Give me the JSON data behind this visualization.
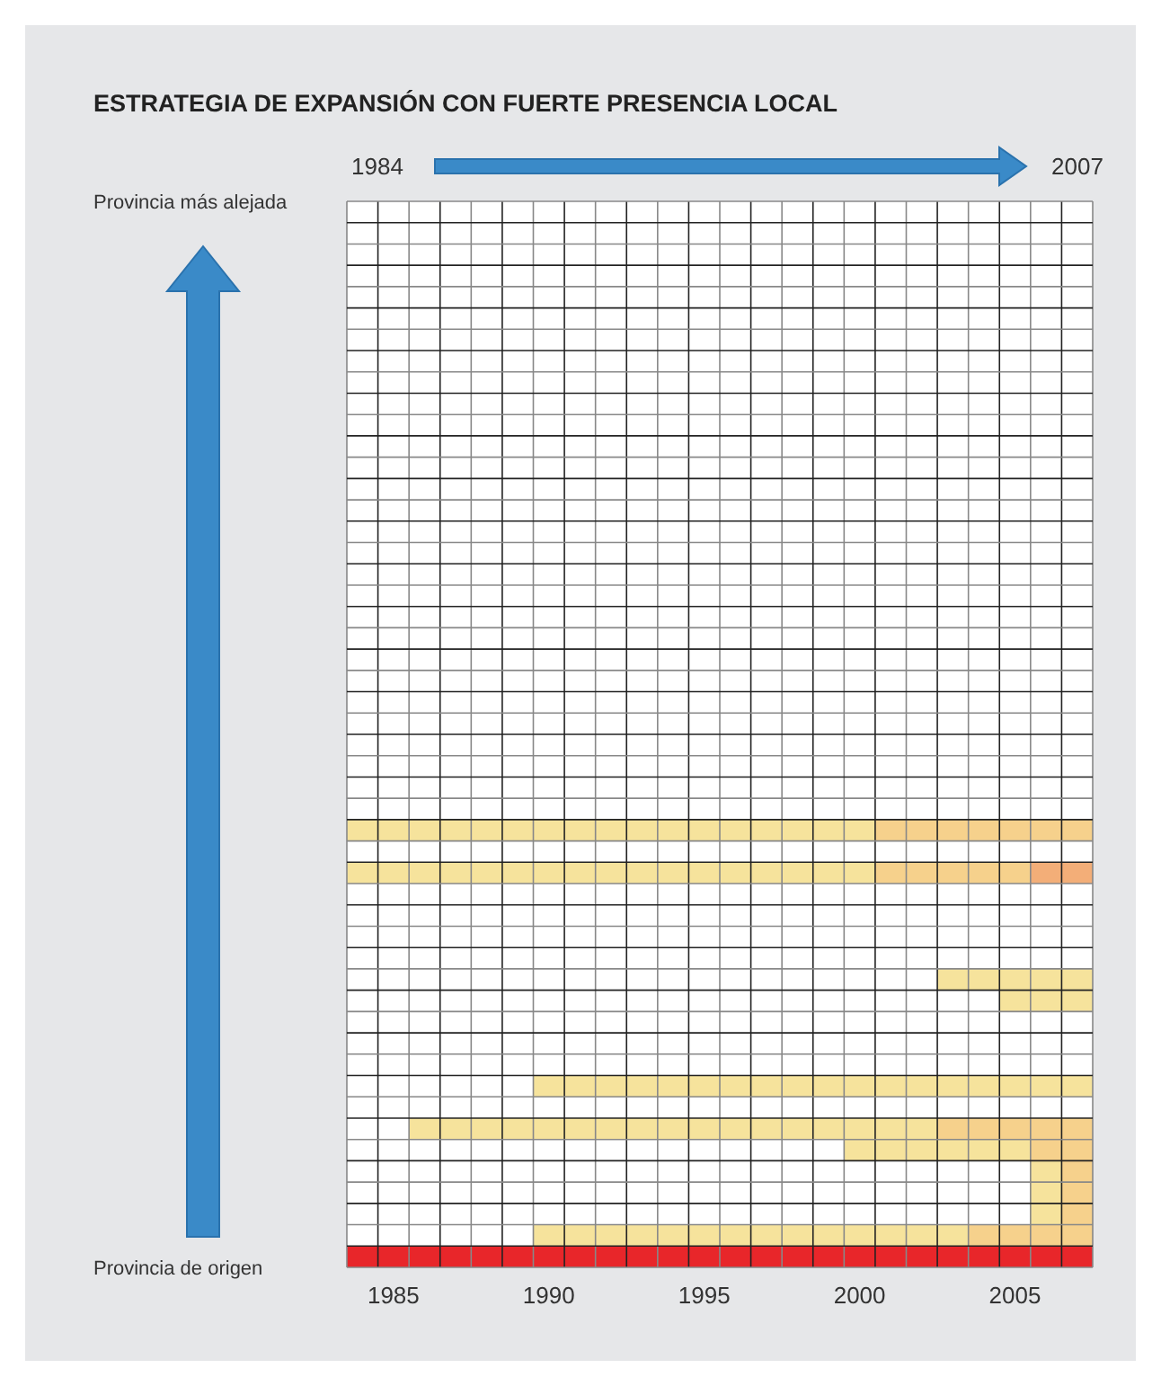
{
  "chart_data": {
    "type": "bar",
    "orientation": "horizontal",
    "title": "ESTRATEGIA DE EXPANSIÓN CON FUERTE PRESENCIA LOCAL",
    "categories": [
      null,
      null,
      null,
      null,
      null,
      null,
      null,
      null,
      null,
      null,
      null,
      null,
      null,
      null,
      null,
      null,
      null,
      null,
      null,
      null,
      null,
      null,
      null,
      null,
      null,
      null,
      null,
      null,
      null,
      null,
      null,
      null,
      null,
      null,
      null,
      null,
      null,
      null,
      null,
      null,
      null,
      null,
      null,
      null,
      null,
      null,
      null,
      null,
      null,
      null
    ],
    "series": [
      {
        "colors": [
          "#f6e39c",
          "#f6e39c",
          "#f6e39c",
          "#f6e39c",
          "#f6e39c",
          "#f6e39c",
          "#f6e39c",
          "#f6e39c",
          "#f6e39c",
          "#f6e39c",
          "#f6e39c",
          "#f6e39c",
          "#f6e39c",
          "#f6e39c",
          "#f6e39c",
          "#f6e39c",
          "#f6e39c",
          "#f6e39c",
          "#f6e39c",
          "#f6e39c",
          "#f6e39c",
          "#f6e39c",
          "#f6e39c",
          "#f6e39c",
          "#f6e39c",
          "#f6e39c",
          "#f6e39c",
          "#f6e39c",
          "#f6e39c",
          "#f6e39c",
          "#f6e39c",
          "#f6e39c",
          "#f6e39c",
          "#f6e39c",
          "#f6e39c",
          "#f6e39c",
          "#f6e39c",
          "#f6e39c",
          "#f6e39c",
          "#f6e39c",
          "#f6e39c",
          "#f6e39c",
          "#f6e39c",
          "#f6e39c",
          "#f6e39c",
          "#f6e39c",
          "#f6e39c",
          "#f6e39c",
          "#f6e39c",
          "#e8262a"
        ],
        "base": [
          null,
          null,
          null,
          null,
          null,
          null,
          null,
          null,
          null,
          null,
          null,
          null,
          null,
          null,
          null,
          null,
          null,
          null,
          null,
          null,
          null,
          null,
          null,
          null,
          null,
          null,
          null,
          null,
          null,
          1984,
          null,
          1984,
          null,
          null,
          null,
          null,
          2003,
          2005,
          null,
          null,
          null,
          1990,
          null,
          1986,
          2000,
          2006,
          2006,
          2006,
          1990,
          1984
        ],
        "values": [
          null,
          null,
          null,
          null,
          null,
          null,
          null,
          null,
          null,
          null,
          null,
          null,
          null,
          null,
          null,
          null,
          null,
          null,
          null,
          null,
          null,
          null,
          null,
          null,
          null,
          null,
          null,
          null,
          null,
          17,
          null,
          17,
          null,
          null,
          null,
          null,
          5,
          3,
          null,
          null,
          null,
          18,
          null,
          17,
          6,
          1,
          1,
          1,
          14,
          24
        ]
      },
      {
        "color": "#f6d18c",
        "base": [
          null,
          null,
          null,
          null,
          null,
          null,
          null,
          null,
          null,
          null,
          null,
          null,
          null,
          null,
          null,
          null,
          null,
          null,
          null,
          null,
          null,
          null,
          null,
          null,
          null,
          null,
          null,
          null,
          null,
          2001,
          null,
          2001,
          null,
          null,
          null,
          null,
          null,
          null,
          null,
          null,
          null,
          null,
          null,
          2003,
          2006,
          2007,
          2007,
          2007,
          2004,
          null
        ],
        "values": [
          null,
          null,
          null,
          null,
          null,
          null,
          null,
          null,
          null,
          null,
          null,
          null,
          null,
          null,
          null,
          null,
          null,
          null,
          null,
          null,
          null,
          null,
          null,
          null,
          null,
          null,
          null,
          null,
          null,
          7,
          null,
          5,
          null,
          null,
          null,
          null,
          null,
          null,
          null,
          null,
          null,
          null,
          null,
          5,
          2,
          1,
          1,
          1,
          4,
          null
        ]
      },
      {
        "color": "#f3ae78",
        "base": [
          null,
          null,
          null,
          null,
          null,
          null,
          null,
          null,
          null,
          null,
          null,
          null,
          null,
          null,
          null,
          null,
          null,
          null,
          null,
          null,
          null,
          null,
          null,
          null,
          null,
          null,
          null,
          null,
          null,
          null,
          null,
          2006,
          null,
          null,
          null,
          null,
          null,
          null,
          null,
          null,
          null,
          null,
          null,
          null,
          null,
          null,
          null,
          null,
          null,
          null
        ],
        "values": [
          null,
          null,
          null,
          null,
          null,
          null,
          null,
          null,
          null,
          null,
          null,
          null,
          null,
          null,
          null,
          null,
          null,
          null,
          null,
          null,
          null,
          null,
          null,
          null,
          null,
          null,
          null,
          null,
          null,
          null,
          null,
          2,
          null,
          null,
          null,
          null,
          null,
          null,
          null,
          null,
          null,
          null,
          null,
          null,
          null,
          null,
          null,
          null,
          null,
          null
        ]
      }
    ],
    "xlim": [
      1984,
      2008
    ],
    "xticks": [
      {
        "value": 1985.5,
        "label": "1985"
      },
      {
        "value": 1990.5,
        "label": "1990"
      },
      {
        "value": 1995.5,
        "label": "1995"
      },
      {
        "value": 2000.5,
        "label": "2000"
      },
      {
        "value": 2005.5,
        "label": "2005"
      }
    ],
    "grid": true,
    "annotations": [
      "1984",
      "2007",
      "Provincia más alejada",
      "Provincia de origen"
    ]
  }
}
